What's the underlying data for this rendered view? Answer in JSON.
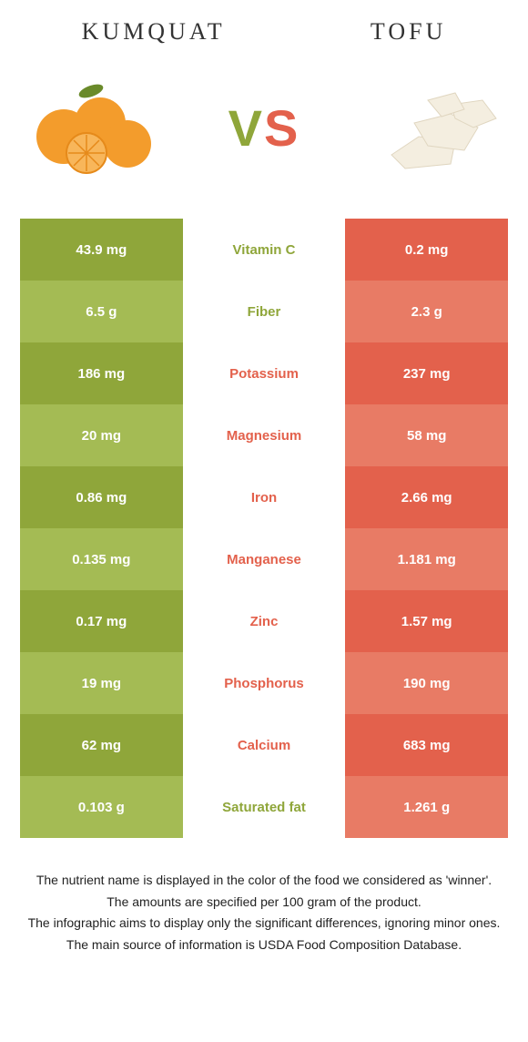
{
  "header": {
    "left_title": "Kumquat",
    "right_title": "Tofu"
  },
  "vs": {
    "v": "V",
    "s": "S"
  },
  "colors": {
    "green_dark": "#8fa63a",
    "green_light": "#a4bb54",
    "orange_dark": "#e3614c",
    "orange_light": "#e87b65",
    "background": "#ffffff",
    "text": "#222222"
  },
  "typography": {
    "title_fontsize": 26,
    "title_letter_spacing": 4,
    "cell_fontsize": 15,
    "cell_fontweight": 600,
    "vs_fontsize": 56,
    "footnote_fontsize": 14
  },
  "rows": [
    {
      "left": "43.9 mg",
      "label": "Vitamin C",
      "right": "0.2 mg",
      "winner": "left"
    },
    {
      "left": "6.5 g",
      "label": "Fiber",
      "right": "2.3 g",
      "winner": "left"
    },
    {
      "left": "186 mg",
      "label": "Potassium",
      "right": "237 mg",
      "winner": "right"
    },
    {
      "left": "20 mg",
      "label": "Magnesium",
      "right": "58 mg",
      "winner": "right"
    },
    {
      "left": "0.86 mg",
      "label": "Iron",
      "right": "2.66 mg",
      "winner": "right"
    },
    {
      "left": "0.135 mg",
      "label": "Manganese",
      "right": "1.181 mg",
      "winner": "right"
    },
    {
      "left": "0.17 mg",
      "label": "Zinc",
      "right": "1.57 mg",
      "winner": "right"
    },
    {
      "left": "19 mg",
      "label": "Phosphorus",
      "right": "190 mg",
      "winner": "right"
    },
    {
      "left": "62 mg",
      "label": "Calcium",
      "right": "683 mg",
      "winner": "right"
    },
    {
      "left": "0.103 g",
      "label": "Saturated fat",
      "right": "1.261 g",
      "winner": "left"
    }
  ],
  "footnotes": [
    "The nutrient name is displayed in the color of the food we considered as 'winner'.",
    "The amounts are specified per 100 gram of the product.",
    "The infographic aims to display only the significant differences, ignoring minor ones.",
    "The main source of information is USDA Food Composition Database."
  ]
}
